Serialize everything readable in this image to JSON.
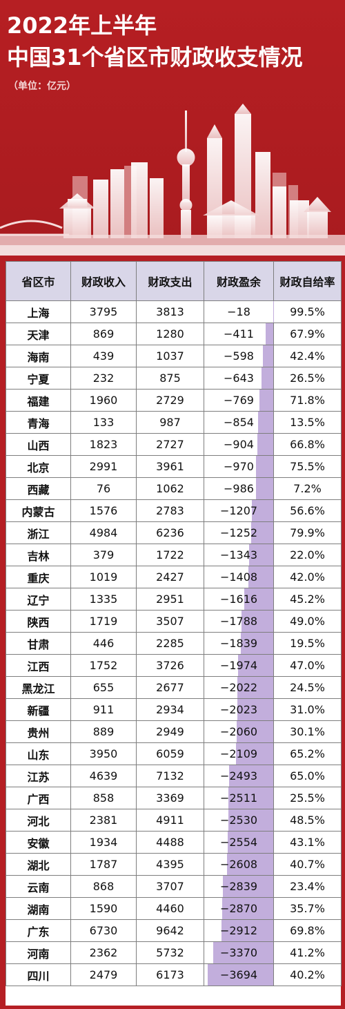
{
  "title_line1": "2022年上半年",
  "title_line2": "中国31个省区市财政收支情况",
  "unit": "（单位：亿元）",
  "table": {
    "headers": [
      "省区市",
      "财政收入",
      "财政支出",
      "财政盈余",
      "财政自给率"
    ],
    "rows": [
      {
        "prov": "上海",
        "income": "3795",
        "expense": "3813",
        "surplus": "−18",
        "ratio": "99.5%"
      },
      {
        "prov": "天津",
        "income": "869",
        "expense": "1280",
        "surplus": "−411",
        "ratio": "67.9%"
      },
      {
        "prov": "海南",
        "income": "439",
        "expense": "1037",
        "surplus": "−598",
        "ratio": "42.4%"
      },
      {
        "prov": "宁夏",
        "income": "232",
        "expense": "875",
        "surplus": "−643",
        "ratio": "26.5%"
      },
      {
        "prov": "福建",
        "income": "1960",
        "expense": "2729",
        "surplus": "−769",
        "ratio": "71.8%"
      },
      {
        "prov": "青海",
        "income": "133",
        "expense": "987",
        "surplus": "−854",
        "ratio": "13.5%"
      },
      {
        "prov": "山西",
        "income": "1823",
        "expense": "2727",
        "surplus": "−904",
        "ratio": "66.8%"
      },
      {
        "prov": "北京",
        "income": "2991",
        "expense": "3961",
        "surplus": "−970",
        "ratio": "75.5%"
      },
      {
        "prov": "西藏",
        "income": "76",
        "expense": "1062",
        "surplus": "−986",
        "ratio": "7.2%"
      },
      {
        "prov": "内蒙古",
        "income": "1576",
        "expense": "2783",
        "surplus": "−1207",
        "ratio": "56.6%"
      },
      {
        "prov": "浙江",
        "income": "4984",
        "expense": "6236",
        "surplus": "−1252",
        "ratio": "79.9%"
      },
      {
        "prov": "吉林",
        "income": "379",
        "expense": "1722",
        "surplus": "−1343",
        "ratio": "22.0%"
      },
      {
        "prov": "重庆",
        "income": "1019",
        "expense": "2427",
        "surplus": "−1408",
        "ratio": "42.0%"
      },
      {
        "prov": "辽宁",
        "income": "1335",
        "expense": "2951",
        "surplus": "−1616",
        "ratio": "45.2%"
      },
      {
        "prov": "陕西",
        "income": "1719",
        "expense": "3507",
        "surplus": "−1788",
        "ratio": "49.0%"
      },
      {
        "prov": "甘肃",
        "income": "446",
        "expense": "2285",
        "surplus": "−1839",
        "ratio": "19.5%"
      },
      {
        "prov": "江西",
        "income": "1752",
        "expense": "3726",
        "surplus": "−1974",
        "ratio": "47.0%"
      },
      {
        "prov": "黑龙江",
        "income": "655",
        "expense": "2677",
        "surplus": "−2022",
        "ratio": "24.5%"
      },
      {
        "prov": "新疆",
        "income": "911",
        "expense": "2934",
        "surplus": "−2023",
        "ratio": "31.0%"
      },
      {
        "prov": "贵州",
        "income": "889",
        "expense": "2949",
        "surplus": "−2060",
        "ratio": "30.1%"
      },
      {
        "prov": "山东",
        "income": "3950",
        "expense": "6059",
        "surplus": "−2109",
        "ratio": "65.2%"
      },
      {
        "prov": "江苏",
        "income": "4639",
        "expense": "7132",
        "surplus": "−2493",
        "ratio": "65.0%"
      },
      {
        "prov": "广西",
        "income": "858",
        "expense": "3369",
        "surplus": "−2511",
        "ratio": "25.5%"
      },
      {
        "prov": "河北",
        "income": "2381",
        "expense": "4911",
        "surplus": "−2530",
        "ratio": "48.5%"
      },
      {
        "prov": "安徽",
        "income": "1934",
        "expense": "4488",
        "surplus": "−2554",
        "ratio": "43.1%"
      },
      {
        "prov": "湖北",
        "income": "1787",
        "expense": "4395",
        "surplus": "−2608",
        "ratio": "40.7%"
      },
      {
        "prov": "云南",
        "income": "868",
        "expense": "3707",
        "surplus": "−2839",
        "ratio": "23.4%"
      },
      {
        "prov": "湖南",
        "income": "1590",
        "expense": "4460",
        "surplus": "−2870",
        "ratio": "35.7%"
      },
      {
        "prov": "广东",
        "income": "6730",
        "expense": "9642",
        "surplus": "−2912",
        "ratio": "69.8%"
      },
      {
        "prov": "河南",
        "income": "2362",
        "expense": "5732",
        "surplus": "−3370",
        "ratio": "41.2%"
      },
      {
        "prov": "四川",
        "income": "2479",
        "expense": "6173",
        "surplus": "−3694",
        "ratio": "40.2%"
      }
    ]
  },
  "colors": {
    "header_bg": "#b51f24",
    "table_header_bg": "#d9d6e8",
    "surplus_bar": "#c2aedc"
  }
}
